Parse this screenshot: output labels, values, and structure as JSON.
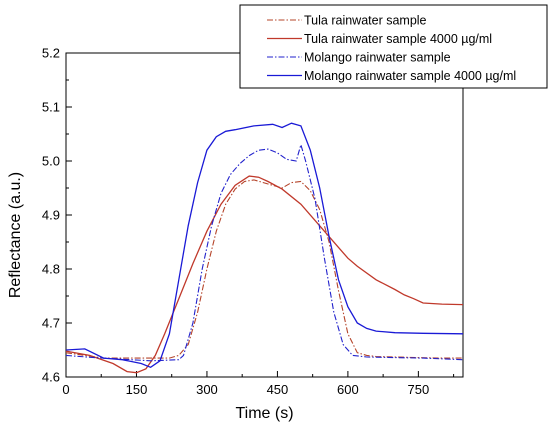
{
  "chart_data": {
    "type": "line",
    "title": "",
    "xlabel": "Time (s)",
    "ylabel": "Reflectance (a.u.)",
    "xlim": [
      0,
      845
    ],
    "ylim": [
      4.6,
      5.2
    ],
    "xticks": [
      0,
      150,
      300,
      450,
      600,
      750
    ],
    "yticks": [
      4.6,
      4.7,
      4.8,
      4.9,
      5.0,
      5.1,
      5.2
    ],
    "ytick_labels": [
      "4.6",
      "4.7",
      "4.8",
      "4.9",
      "5.0",
      "5.1",
      "5.2"
    ],
    "grid": false,
    "legend_position": "top-right",
    "series": [
      {
        "name": "Tula rainwater sample",
        "color": "#b5442a",
        "dash": "dashdot",
        "x": [
          0,
          40,
          80,
          120,
          160,
          220,
          240,
          260,
          280,
          300,
          320,
          340,
          360,
          380,
          400,
          420,
          440,
          460,
          480,
          500,
          520,
          540,
          560,
          580,
          600,
          620,
          640,
          660,
          700,
          750,
          800,
          845
        ],
        "y": [
          4.645,
          4.64,
          4.635,
          4.635,
          4.635,
          4.635,
          4.64,
          4.66,
          4.72,
          4.8,
          4.87,
          4.92,
          4.948,
          4.962,
          4.965,
          4.96,
          4.955,
          4.95,
          4.96,
          4.962,
          4.945,
          4.91,
          4.85,
          4.76,
          4.68,
          4.645,
          4.64,
          4.638,
          4.637,
          4.636,
          4.635,
          4.635
        ]
      },
      {
        "name": "Tula rainwater sample 4000 µg/ml",
        "color": "#c0392b",
        "dash": "solid",
        "x": [
          0,
          50,
          100,
          130,
          150,
          170,
          190,
          210,
          240,
          270,
          300,
          330,
          360,
          390,
          410,
          430,
          460,
          500,
          540,
          580,
          600,
          620,
          660,
          700,
          720,
          740,
          760,
          800,
          845
        ],
        "y": [
          4.648,
          4.64,
          4.625,
          4.61,
          4.608,
          4.615,
          4.64,
          4.68,
          4.745,
          4.81,
          4.87,
          4.92,
          4.955,
          4.972,
          4.97,
          4.962,
          4.948,
          4.92,
          4.88,
          4.84,
          4.82,
          4.805,
          4.78,
          4.762,
          4.752,
          4.745,
          4.737,
          4.735,
          4.734
        ]
      },
      {
        "name": "Molango rainwater sample",
        "color": "#2222cc",
        "dash": "dashdot",
        "x": [
          0,
          60,
          120,
          180,
          240,
          250,
          270,
          290,
          310,
          330,
          350,
          370,
          390,
          410,
          430,
          450,
          470,
          490,
          500,
          510,
          530,
          550,
          570,
          590,
          610,
          640,
          700,
          760,
          845
        ],
        "y": [
          4.64,
          4.636,
          4.633,
          4.63,
          4.632,
          4.64,
          4.7,
          4.8,
          4.88,
          4.94,
          4.975,
          4.995,
          5.01,
          5.02,
          5.022,
          5.015,
          5.003,
          5.0,
          5.03,
          5.0,
          4.93,
          4.82,
          4.72,
          4.66,
          4.64,
          4.637,
          4.636,
          4.635,
          4.632
        ]
      },
      {
        "name": "Molango rainwater sample 4000 µg/ml",
        "color": "#1a1ad6",
        "dash": "solid",
        "x": [
          0,
          40,
          80,
          120,
          160,
          180,
          200,
          220,
          240,
          260,
          280,
          300,
          320,
          340,
          360,
          400,
          440,
          460,
          480,
          500,
          520,
          540,
          560,
          580,
          600,
          620,
          640,
          660,
          700,
          760,
          845
        ],
        "y": [
          4.65,
          4.652,
          4.635,
          4.632,
          4.625,
          4.618,
          4.63,
          4.68,
          4.78,
          4.88,
          4.96,
          5.02,
          5.045,
          5.055,
          5.058,
          5.065,
          5.068,
          5.062,
          5.07,
          5.065,
          5.02,
          4.95,
          4.86,
          4.78,
          4.73,
          4.7,
          4.69,
          4.685,
          4.682,
          4.681,
          4.68
        ]
      }
    ]
  }
}
